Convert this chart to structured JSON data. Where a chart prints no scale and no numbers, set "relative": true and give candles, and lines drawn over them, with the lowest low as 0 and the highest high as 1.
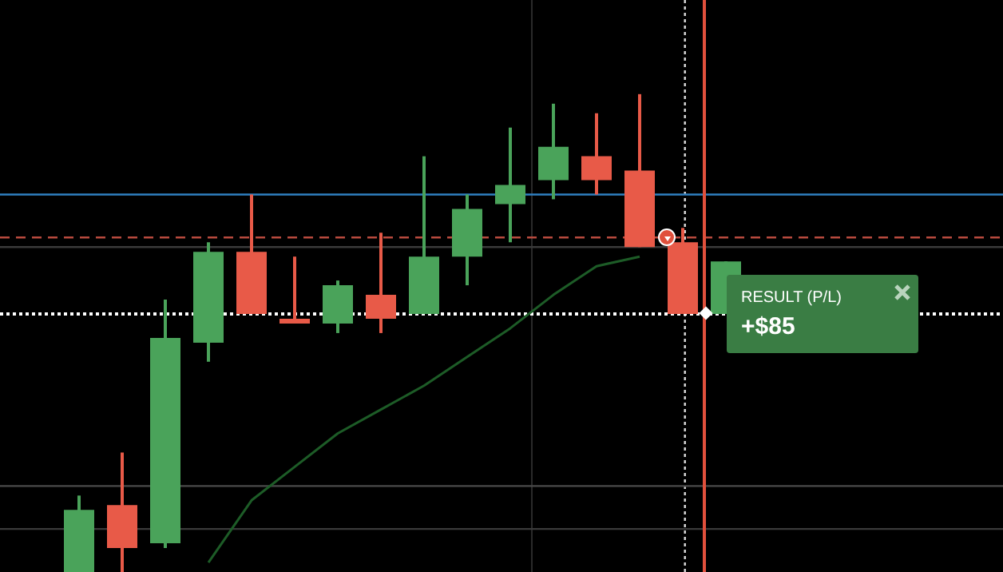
{
  "chart_data": {
    "type": "candlestick",
    "relative": true,
    "tick_labels": false,
    "categories": [
      null,
      null,
      null,
      null,
      null,
      null,
      null,
      null,
      null,
      null,
      null,
      null,
      null,
      null,
      null,
      null
    ],
    "ohlc": [
      [
        0,
        0.16,
        0,
        0.13
      ],
      [
        0.14,
        0.25,
        0,
        0.05
      ],
      [
        0.06,
        0.57,
        0.05,
        0.49
      ],
      [
        0.48,
        0.69,
        0.44,
        0.67
      ],
      [
        0.67,
        0.79,
        0.54,
        0.54
      ],
      [
        0.53,
        0.66,
        0.52,
        0.52
      ],
      [
        0.52,
        0.61,
        0.5,
        0.6
      ],
      [
        0.58,
        0.71,
        0.5,
        0.53
      ],
      [
        0.54,
        0.87,
        0.54,
        0.66
      ],
      [
        0.66,
        0.79,
        0.6,
        0.76
      ],
      [
        0.77,
        0.93,
        0.69,
        0.81
      ],
      [
        0.82,
        0.98,
        0.78,
        0.89
      ],
      [
        0.87,
        0.96,
        0.79,
        0.82
      ],
      [
        0.84,
        1,
        0.68,
        0.68
      ],
      [
        0.69,
        0.72,
        0.54,
        0.54
      ],
      [
        0.54,
        0.65,
        0.54,
        0.65
      ]
    ],
    "colors": [
      "#4aa35a",
      "#e85a48",
      "#4aa35a",
      "#4aa35a",
      "#e85a48",
      "#e85a48",
      "#4aa35a",
      "#e85a48",
      "#4aa35a",
      "#4aa35a",
      "#4aa35a",
      "#4aa35a",
      "#e85a48",
      "#e85a48",
      "#e85a48",
      "#4aa35a"
    ],
    "series": [
      {
        "type": "line",
        "color": "#1d5c27",
        "values": [
          null,
          null,
          null,
          0.02,
          0.15,
          0.22,
          0.29,
          0.34,
          0.39,
          0.45,
          0.51,
          0.58,
          0.64,
          0.66,
          null,
          null
        ]
      }
    ],
    "ref_lines": [
      {
        "axis": "y",
        "value": 0.79,
        "color": "#2f7fc1",
        "line_style": "solid"
      },
      {
        "axis": "y",
        "value": 0.7,
        "color": "#b84a3e",
        "line_style": "dashed"
      },
      {
        "axis": "y",
        "value": 0.68,
        "color": "#3a3a3a",
        "line_style": "solid"
      },
      {
        "axis": "y",
        "value": 0.54,
        "color": "#ffffff",
        "line_style": "dotted"
      },
      {
        "axis": "y",
        "value": 0.18,
        "color": "#4a4a4a",
        "line_style": "solid"
      },
      {
        "axis": "y",
        "value": 0.09,
        "color": "#3a3a3a",
        "line_style": "solid"
      }
    ],
    "annotations": [
      "RESULT (P/L)",
      "+$85"
    ]
  }
}
